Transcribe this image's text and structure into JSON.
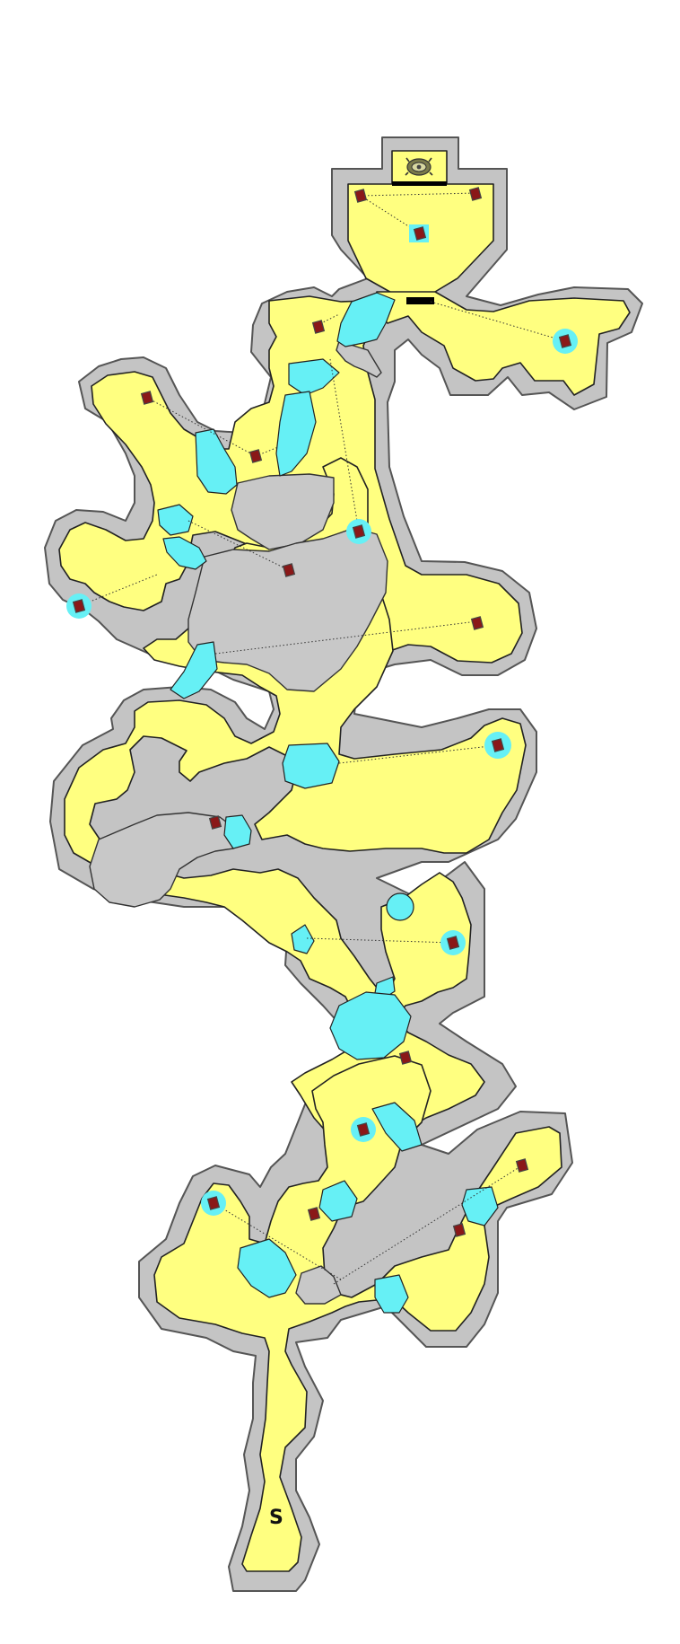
{
  "map": {
    "start_marker": "S",
    "colors": {
      "background": "#ffffff",
      "wall": "#c4c4c4",
      "floor": "#ffff80",
      "water": "#66f0f5",
      "chest": "#8a1818",
      "gate": "#000000"
    },
    "icons": {
      "boss_marker": "spiral-altar-icon",
      "chest": "treasure-chest-icon",
      "start": "start-marker"
    }
  }
}
